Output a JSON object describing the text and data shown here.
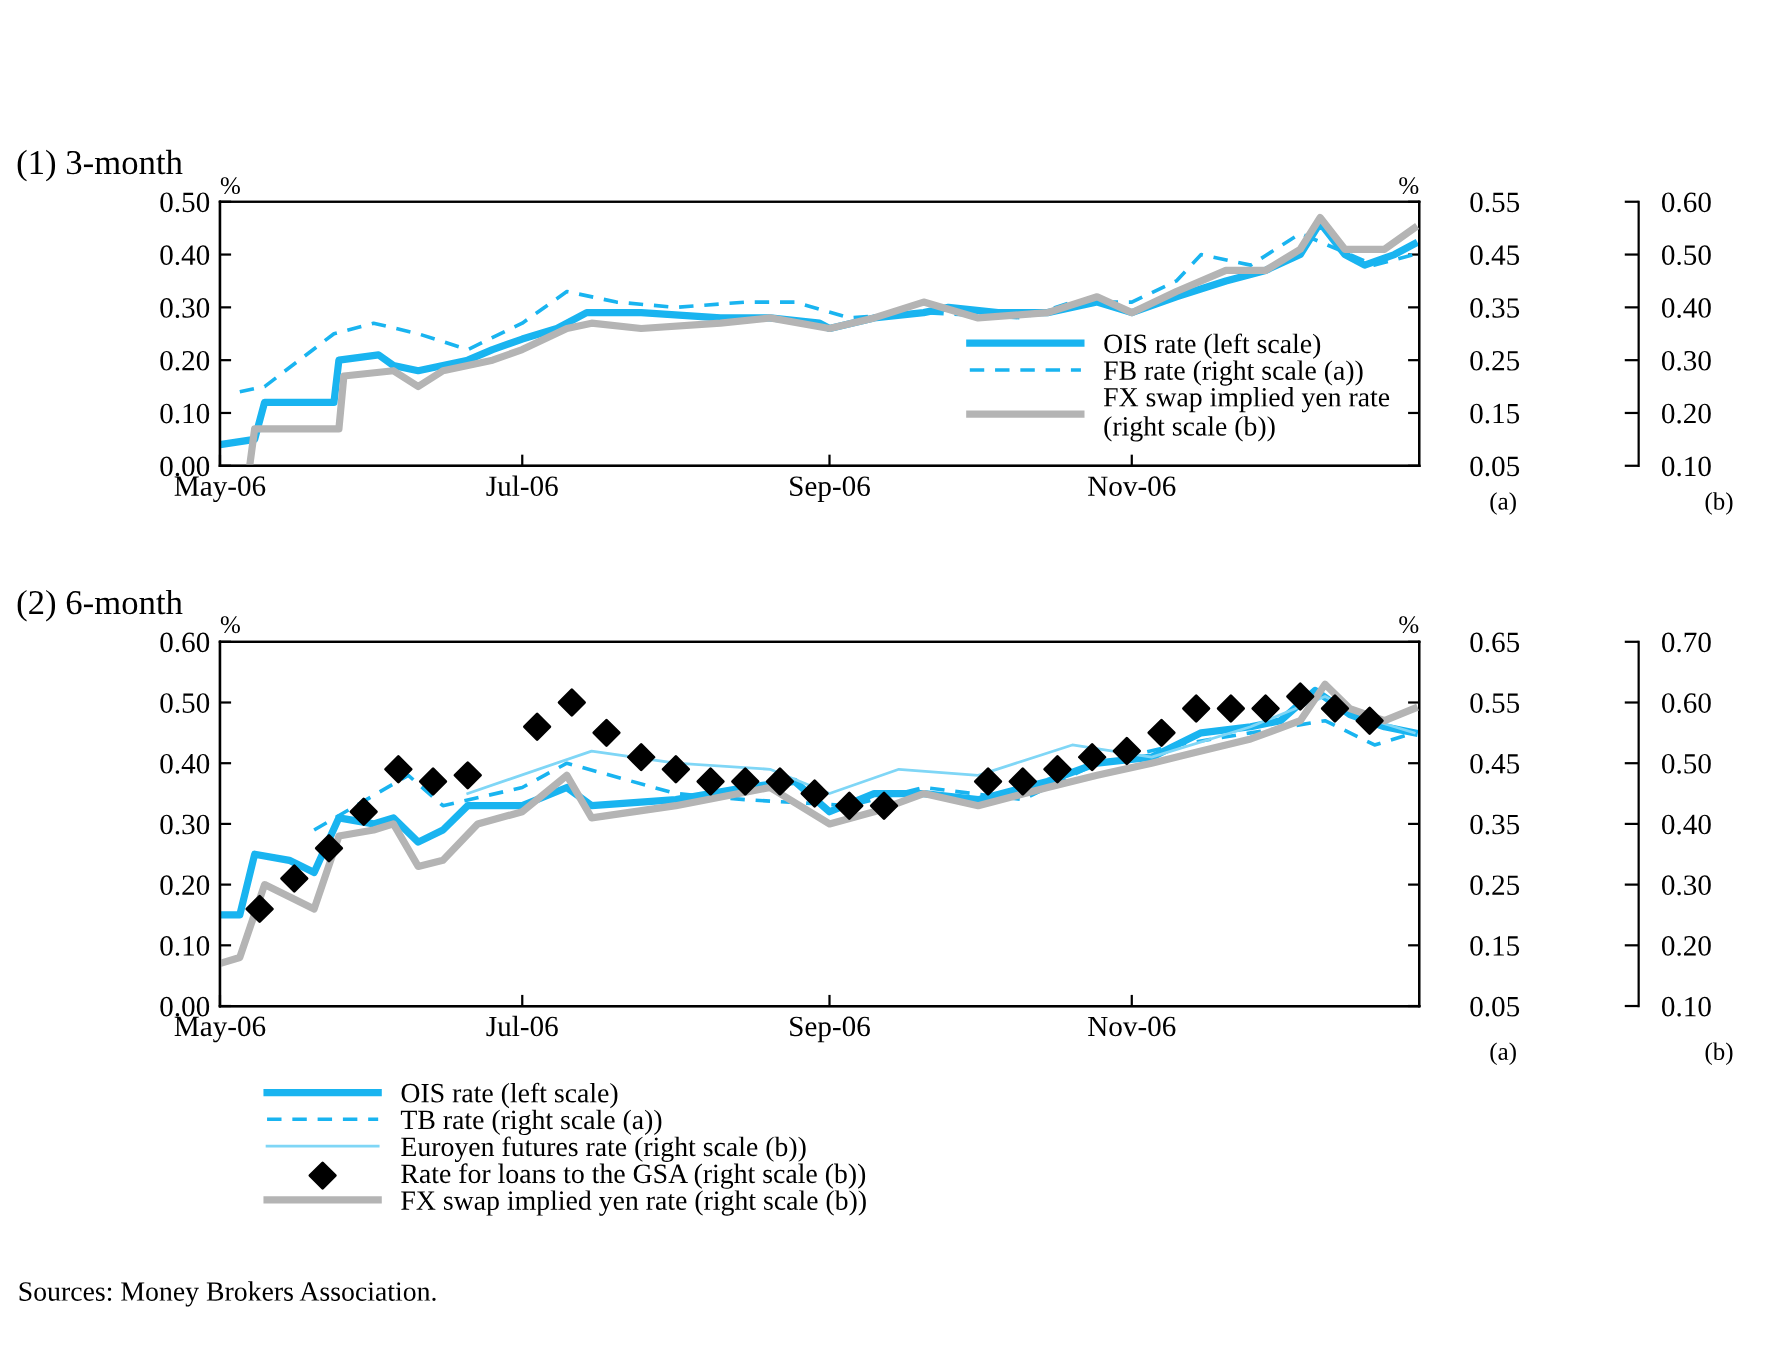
{
  "chart_data": [
    {
      "type": "line",
      "title": "(1) 3-month",
      "ylabel": "%",
      "y2label": "%",
      "annotations": [
        "(a)",
        "(b)"
      ],
      "xlim": [
        "2006-05-01",
        "2006-12-29"
      ],
      "xticks": [
        {
          "value": "2006-05-01",
          "label": "May-06"
        },
        {
          "value": "2006-07-01",
          "label": "Jul-06"
        },
        {
          "value": "2006-09-01",
          "label": "Sep-06"
        },
        {
          "value": "2006-11-01",
          "label": "Nov-06"
        }
      ],
      "ylim": [
        0,
        0.5
      ],
      "yticks": [
        {
          "value": 0,
          "label": "0.00"
        },
        {
          "value": 0.1,
          "label": "0.10"
        },
        {
          "value": 0.2,
          "label": "0.20"
        },
        {
          "value": 0.3,
          "label": "0.30"
        },
        {
          "value": 0.4,
          "label": "0.40"
        },
        {
          "value": 0.5,
          "label": "0.50"
        }
      ],
      "y2lim": [
        0.05,
        0.55
      ],
      "y2ticks": [
        {
          "value": 0.05,
          "label": "0.05"
        },
        {
          "value": 0.15,
          "label": "0.15"
        },
        {
          "value": 0.25,
          "label": "0.25"
        },
        {
          "value": 0.35,
          "label": "0.35"
        },
        {
          "value": 0.45,
          "label": "0.45"
        },
        {
          "value": 0.55,
          "label": "0.55"
        }
      ],
      "y3lim": [
        0.1,
        0.6
      ],
      "y3ticks": [
        {
          "value": 0.1,
          "label": "0.10"
        },
        {
          "value": 0.2,
          "label": "0.20"
        },
        {
          "value": 0.3,
          "label": "0.30"
        },
        {
          "value": 0.4,
          "label": "0.40"
        },
        {
          "value": 0.5,
          "label": "0.50"
        },
        {
          "value": 0.6,
          "label": "0.60"
        }
      ],
      "grid": false,
      "legend": "bottom right",
      "series": [
        {
          "name": "OIS rate (left scale)",
          "color": "#19b4f0",
          "axis": "y",
          "line_style": "solid",
          "x": [
            "2006-05-01",
            "2006-05-08",
            "2006-05-10",
            "2006-05-24",
            "2006-05-25",
            "2006-06-02",
            "2006-06-05",
            "2006-06-10",
            "2006-06-15",
            "2006-06-20",
            "2006-06-25",
            "2006-07-01",
            "2006-07-08",
            "2006-07-14",
            "2006-07-25",
            "2006-08-10",
            "2006-08-20",
            "2006-08-30",
            "2006-09-01",
            "2006-09-10",
            "2006-09-20",
            "2006-09-25",
            "2006-10-05",
            "2006-10-15",
            "2006-10-25",
            "2006-11-01",
            "2006-11-10",
            "2006-11-20",
            "2006-11-28",
            "2006-12-05",
            "2006-12-09",
            "2006-12-14",
            "2006-12-18",
            "2006-12-24",
            "2006-12-28"
          ],
          "values": [
            0.04,
            0.05,
            0.12,
            0.12,
            0.2,
            0.21,
            0.19,
            0.18,
            0.19,
            0.2,
            0.22,
            0.24,
            0.26,
            0.29,
            0.29,
            0.28,
            0.28,
            0.27,
            0.26,
            0.28,
            0.29,
            0.3,
            0.29,
            0.29,
            0.31,
            0.29,
            0.32,
            0.35,
            0.37,
            0.4,
            0.46,
            0.4,
            0.38,
            0.4,
            0.42
          ]
        },
        {
          "name": "FB rate (right scale (a))",
          "color": "#19b4f0",
          "axis": "y2",
          "line_style": "dashed",
          "x": [
            "2006-05-05",
            "2006-05-10",
            "2006-05-24",
            "2006-06-01",
            "2006-06-10",
            "2006-06-20",
            "2006-07-01",
            "2006-07-10",
            "2006-07-20",
            "2006-08-01",
            "2006-08-15",
            "2006-08-25",
            "2006-09-05",
            "2006-09-20",
            "2006-10-10",
            "2006-10-20",
            "2006-11-01",
            "2006-11-10",
            "2006-11-15",
            "2006-11-25",
            "2006-12-05",
            "2006-12-15",
            "2006-12-20",
            "2006-12-28"
          ],
          "values": [
            0.19,
            0.2,
            0.3,
            0.32,
            0.3,
            0.27,
            0.32,
            0.38,
            0.36,
            0.35,
            0.36,
            0.36,
            0.33,
            0.34,
            0.33,
            0.36,
            0.36,
            0.4,
            0.45,
            0.43,
            0.49,
            0.45,
            0.43,
            0.45
          ]
        },
        {
          "name": "FX swap implied yen rate\n(right scale (b))",
          "color": "#b4b4b4",
          "axis": "y3",
          "line_style": "solid",
          "x": [
            "2006-05-07",
            "2006-05-08",
            "2006-05-25",
            "2006-05-26",
            "2006-06-05",
            "2006-06-10",
            "2006-06-15",
            "2006-06-25",
            "2006-07-01",
            "2006-07-10",
            "2006-07-15",
            "2006-07-25",
            "2006-08-10",
            "2006-08-20",
            "2006-09-01",
            "2006-09-10",
            "2006-09-20",
            "2006-10-01",
            "2006-10-15",
            "2006-10-25",
            "2006-11-01",
            "2006-11-10",
            "2006-11-20",
            "2006-11-28",
            "2006-12-05",
            "2006-12-09",
            "2006-12-14",
            "2006-12-22",
            "2006-12-28"
          ],
          "values": [
            0.1,
            0.17,
            0.17,
            0.27,
            0.28,
            0.25,
            0.28,
            0.3,
            0.32,
            0.36,
            0.37,
            0.36,
            0.37,
            0.38,
            0.36,
            0.38,
            0.41,
            0.38,
            0.39,
            0.42,
            0.39,
            0.43,
            0.47,
            0.47,
            0.51,
            0.57,
            0.51,
            0.51,
            0.55
          ]
        }
      ]
    },
    {
      "type": "line",
      "title": "(2) 6-month",
      "ylabel": "%",
      "y2label": "%",
      "annotations": [
        "(a)",
        "(b)",
        "Sources: Money Brokers Association."
      ],
      "xlim": [
        "2006-05-01",
        "2006-12-29"
      ],
      "xticks": [
        {
          "value": "2006-05-01",
          "label": "May-06"
        },
        {
          "value": "2006-07-01",
          "label": "Jul-06"
        },
        {
          "value": "2006-09-01",
          "label": "Sep-06"
        },
        {
          "value": "2006-11-01",
          "label": "Nov-06"
        }
      ],
      "ylim": [
        0,
        0.6
      ],
      "yticks": [
        {
          "value": 0,
          "label": "0.00"
        },
        {
          "value": 0.1,
          "label": "0.10"
        },
        {
          "value": 0.2,
          "label": "0.20"
        },
        {
          "value": 0.3,
          "label": "0.30"
        },
        {
          "value": 0.4,
          "label": "0.40"
        },
        {
          "value": 0.5,
          "label": "0.50"
        },
        {
          "value": 0.6,
          "label": "0.60"
        }
      ],
      "y2lim": [
        0.05,
        0.65
      ],
      "y2ticks": [
        {
          "value": 0.05,
          "label": "0.05"
        },
        {
          "value": 0.15,
          "label": "0.15"
        },
        {
          "value": 0.25,
          "label": "0.25"
        },
        {
          "value": 0.35,
          "label": "0.35"
        },
        {
          "value": 0.45,
          "label": "0.45"
        },
        {
          "value": 0.55,
          "label": "0.55"
        },
        {
          "value": 0.65,
          "label": "0.65"
        }
      ],
      "y3lim": [
        0.1,
        0.7
      ],
      "y3ticks": [
        {
          "value": 0.1,
          "label": "0.10"
        },
        {
          "value": 0.2,
          "label": "0.20"
        },
        {
          "value": 0.3,
          "label": "0.30"
        },
        {
          "value": 0.4,
          "label": "0.40"
        },
        {
          "value": 0.5,
          "label": "0.50"
        },
        {
          "value": 0.6,
          "label": "0.60"
        },
        {
          "value": 0.7,
          "label": "0.70"
        }
      ],
      "grid": false,
      "legend": "bottom",
      "series": [
        {
          "name": "OIS rate (left scale)",
          "color": "#19b4f0",
          "axis": "y",
          "line_style": "solid",
          "x": [
            "2006-05-01",
            "2006-05-05",
            "2006-05-08",
            "2006-05-15",
            "2006-05-20",
            "2006-05-25",
            "2006-06-01",
            "2006-06-05",
            "2006-06-10",
            "2006-06-15",
            "2006-06-20",
            "2006-07-01",
            "2006-07-10",
            "2006-07-15",
            "2006-08-01",
            "2006-08-15",
            "2006-08-25",
            "2006-09-01",
            "2006-09-10",
            "2006-09-20",
            "2006-10-01",
            "2006-10-15",
            "2006-10-25",
            "2006-11-05",
            "2006-11-15",
            "2006-11-25",
            "2006-12-01",
            "2006-12-08",
            "2006-12-15",
            "2006-12-22",
            "2006-12-28"
          ],
          "values": [
            0.15,
            0.15,
            0.25,
            0.24,
            0.22,
            0.31,
            0.3,
            0.31,
            0.27,
            0.29,
            0.33,
            0.33,
            0.36,
            0.33,
            0.34,
            0.36,
            0.37,
            0.32,
            0.35,
            0.35,
            0.34,
            0.37,
            0.4,
            0.41,
            0.45,
            0.46,
            0.47,
            0.52,
            0.48,
            0.46,
            0.45
          ]
        },
        {
          "name": "TB rate (right scale (a))",
          "color": "#19b4f0",
          "axis": "y2",
          "line_style": "dashed",
          "x": [
            "2006-05-20",
            "2006-06-08",
            "2006-06-15",
            "2006-07-01",
            "2006-07-10",
            "2006-08-01",
            "2006-08-15",
            "2006-09-05",
            "2006-09-20",
            "2006-10-10",
            "2006-10-25",
            "2006-11-10",
            "2006-11-25",
            "2006-12-10",
            "2006-12-20",
            "2006-12-28"
          ],
          "values": [
            0.34,
            0.43,
            0.38,
            0.41,
            0.45,
            0.4,
            0.39,
            0.38,
            0.41,
            0.39,
            0.45,
            0.48,
            0.5,
            0.52,
            0.48,
            0.5
          ]
        },
        {
          "name": "Euroyen futures rate (right scale (b))",
          "color": "#7fd6f6",
          "axis": "y3",
          "line_style": "solid",
          "x": [
            "2006-06-20",
            "2006-07-15",
            "2006-08-01",
            "2006-08-20",
            "2006-09-01",
            "2006-09-15",
            "2006-10-01",
            "2006-10-20",
            "2006-11-05",
            "2006-11-25",
            "2006-12-10",
            "2006-12-20",
            "2006-12-28"
          ],
          "values": [
            0.45,
            0.52,
            0.5,
            0.49,
            0.45,
            0.49,
            0.48,
            0.53,
            0.51,
            0.56,
            0.61,
            0.57,
            0.55
          ]
        },
        {
          "name": "Rate for loans to the GSA (right scale (b))",
          "type": "scatter",
          "marker": "diamond",
          "color": "#000000",
          "axis": "y3",
          "x": [
            "2006-05-09",
            "2006-05-16",
            "2006-05-23",
            "2006-05-30",
            "2006-06-06",
            "2006-06-13",
            "2006-06-20",
            "2006-07-04",
            "2006-07-11",
            "2006-07-18",
            "2006-07-25",
            "2006-08-01",
            "2006-08-08",
            "2006-08-15",
            "2006-08-22",
            "2006-08-29",
            "2006-09-05",
            "2006-09-12",
            "2006-10-03",
            "2006-10-10",
            "2006-10-17",
            "2006-10-24",
            "2006-10-31",
            "2006-11-07",
            "2006-11-14",
            "2006-11-21",
            "2006-11-28",
            "2006-12-05",
            "2006-12-12",
            "2006-12-19"
          ],
          "values": [
            0.26,
            0.31,
            0.36,
            0.42,
            0.49,
            0.47,
            0.48,
            0.56,
            0.6,
            0.55,
            0.51,
            0.49,
            0.47,
            0.47,
            0.47,
            0.45,
            0.43,
            0.43,
            0.47,
            0.47,
            0.49,
            0.51,
            0.52,
            0.55,
            0.59,
            0.59,
            0.59,
            0.61,
            0.59,
            0.57
          ]
        },
        {
          "name": "FX swap implied yen rate (right scale (b))",
          "color": "#b4b4b4",
          "axis": "y3",
          "line_style": "solid",
          "x": [
            "2006-05-01",
            "2006-05-05",
            "2006-05-10",
            "2006-05-15",
            "2006-05-20",
            "2006-05-25",
            "2006-06-01",
            "2006-06-05",
            "2006-06-10",
            "2006-06-15",
            "2006-06-22",
            "2006-07-01",
            "2006-07-10",
            "2006-07-15",
            "2006-08-01",
            "2006-08-20",
            "2006-09-01",
            "2006-09-10",
            "2006-09-20",
            "2006-10-01",
            "2006-10-15",
            "2006-10-25",
            "2006-11-05",
            "2006-11-15",
            "2006-11-25",
            "2006-12-05",
            "2006-12-10",
            "2006-12-15",
            "2006-12-22",
            "2006-12-28"
          ],
          "values": [
            0.17,
            0.18,
            0.3,
            0.28,
            0.26,
            0.38,
            0.39,
            0.4,
            0.33,
            0.34,
            0.4,
            0.42,
            0.48,
            0.41,
            0.43,
            0.46,
            0.4,
            0.42,
            0.45,
            0.43,
            0.46,
            0.48,
            0.5,
            0.52,
            0.54,
            0.57,
            0.63,
            0.59,
            0.57,
            0.59
          ]
        }
      ]
    }
  ]
}
